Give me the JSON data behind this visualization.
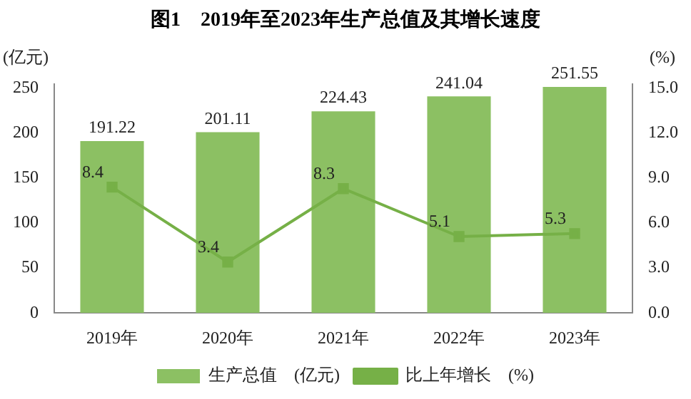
{
  "chart_data": {
    "type": "bar",
    "title": "图1　2019年至2023年生产总值及其增长速度",
    "ylabel": "(亿元)",
    "y2label": "(%)",
    "categories": [
      "2019年",
      "2020年",
      "2021年",
      "2022年",
      "2023年"
    ],
    "series": [
      {
        "name": "生产总值　(亿元)",
        "color": "#8cc063",
        "values": [
          191.22,
          201.11,
          224.43,
          241.04,
          251.55
        ]
      },
      {
        "name": "比上年增长　(%)",
        "type": "line",
        "axis": "y2",
        "color": "#76b047",
        "marker": "square",
        "values": [
          8.4,
          3.4,
          8.3,
          5.1,
          5.3
        ]
      }
    ],
    "ylim": [
      0,
      255
    ],
    "yticks": [
      0,
      50,
      100,
      150,
      200,
      250
    ],
    "y2lim": [
      0,
      15.3
    ],
    "y2ticks": [
      {
        "value": 0,
        "label": "0.0"
      },
      {
        "value": 3,
        "label": "3.0"
      },
      {
        "value": 6,
        "label": "6.0"
      },
      {
        "value": 9,
        "label": "9.0"
      },
      {
        "value": 12,
        "label": "12.0"
      },
      {
        "value": 15,
        "label": "15.0"
      }
    ],
    "data_labels": true,
    "legend": "bottom",
    "grid": false
  }
}
